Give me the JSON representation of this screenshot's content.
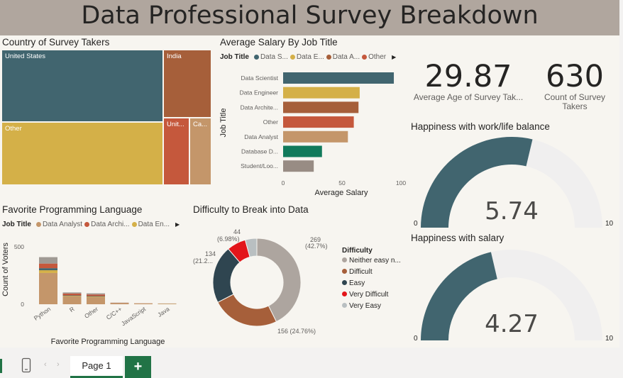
{
  "title": "Data Professional Survey Breakdown",
  "country": {
    "title": "Country of Survey Takers",
    "cells": [
      "United States",
      "India",
      "Other",
      "Unit...",
      "Ca..."
    ]
  },
  "salary": {
    "title": "Average Salary By Job Title",
    "legend_label": "Job Title",
    "legend_items": [
      {
        "label": "Data S...",
        "color": "#41656f"
      },
      {
        "label": "Data E...",
        "color": "#d4b048"
      },
      {
        "label": "Data A...",
        "color": "#a65f3a"
      },
      {
        "label": "Other",
        "color": "#c5583c"
      }
    ]
  },
  "kpis": {
    "age_value": "29.87",
    "age_label": "Average Age of Survey Tak...",
    "count_value": "630",
    "count_label_1": "Count of Survey",
    "count_label_2": "Takers"
  },
  "gauges": [
    {
      "title": "Happiness with work/life balance",
      "value": 5.74,
      "value_text": "5.74",
      "min": "0",
      "max": "10"
    },
    {
      "title": "Happiness with salary",
      "value": 4.27,
      "value_text": "4.27",
      "min": "0",
      "max": "10"
    }
  ],
  "language": {
    "title": "Favorite Programming Language",
    "legend_label": "Job Title",
    "legend_items": [
      {
        "label": "Data Analyst",
        "color": "#c4966a"
      },
      {
        "label": "Data Archi...",
        "color": "#c5583c"
      },
      {
        "label": "Data En...",
        "color": "#d4b048"
      }
    ]
  },
  "difficulty": {
    "title": "Difficulty to Break into Data",
    "legend_title": "Difficulty",
    "legend_items": [
      {
        "label": "Neither easy n...",
        "color": "#ada59f"
      },
      {
        "label": "Difficult",
        "color": "#a65f3a"
      },
      {
        "label": "Easy",
        "color": "#2f4550"
      },
      {
        "label": "Very Difficult",
        "color": "#e3151a"
      },
      {
        "label": "Very Easy",
        "color": "#b9bfc1"
      }
    ]
  },
  "chart_data": [
    {
      "type": "bar",
      "orientation": "horizontal",
      "title": "Average Salary By Job Title",
      "xlabel": "Average Salary",
      "ylabel": "Job Title",
      "categories": [
        "Data Scientist",
        "Data Engineer",
        "Data Archite...",
        "Other",
        "Data Analyst",
        "Database D...",
        "Student/Loo..."
      ],
      "values": [
        94,
        65,
        64,
        60,
        55,
        33,
        26
      ],
      "colors": [
        "#41656f",
        "#d4b048",
        "#a65f3a",
        "#c5583c",
        "#c4966a",
        "#117a5b",
        "#988c84"
      ],
      "xlim": [
        0,
        100
      ],
      "xticks": [
        "0",
        "50",
        "100"
      ]
    },
    {
      "type": "bar",
      "stacked": true,
      "title": "Favorite Programming Language",
      "xlabel": "Favorite Programming Language",
      "ylabel": "Count of Voters",
      "categories": [
        "Python",
        "R",
        "Other",
        "C/C++",
        "JavaScript",
        "Java"
      ],
      "ylim": [
        0,
        500
      ],
      "yticks": [
        "0",
        "500"
      ],
      "series": [
        {
          "color": "#c4966a",
          "values": [
            272,
            68,
            62,
            9,
            6,
            5
          ]
        },
        {
          "color": "#d4b048",
          "values": [
            24,
            5,
            5,
            1,
            1,
            1
          ]
        },
        {
          "color": "#41656f",
          "values": [
            18,
            4,
            4,
            1,
            0,
            0
          ]
        },
        {
          "color": "#c5583c",
          "values": [
            40,
            16,
            14,
            2,
            1,
            0
          ]
        },
        {
          "color": "#a09a94",
          "values": [
            56,
            10,
            10,
            1,
            1,
            1
          ]
        }
      ]
    },
    {
      "type": "pie",
      "donut": true,
      "title": "Difficulty to Break into Data",
      "labels": [
        "Neither easy nor difficult",
        "Difficult",
        "Easy",
        "Very Difficult",
        "Very Easy"
      ],
      "values": [
        269,
        156,
        134,
        44,
        27
      ],
      "colors": [
        "#ada59f",
        "#a65f3a",
        "#2f4550",
        "#e3151a",
        "#b9bfc1"
      ],
      "data_labels": {
        "neither_count": "269",
        "neither_pct": "(42.7%)",
        "difficult": "156 (24.76%)",
        "easy_count": "134",
        "easy_pct": "(21.2...",
        "very_difficult_count": "44",
        "very_difficult_pct": "(6.98%)"
      }
    },
    {
      "type": "treemap",
      "title": "Country of Survey Takers",
      "labels": [
        "United States",
        "India",
        "Other",
        "Unit...",
        "Ca..."
      ],
      "values": [
        261,
        74,
        214,
        38,
        35
      ]
    }
  ],
  "taskbar": {
    "page_label": "Page 1",
    "add_label": "+"
  }
}
